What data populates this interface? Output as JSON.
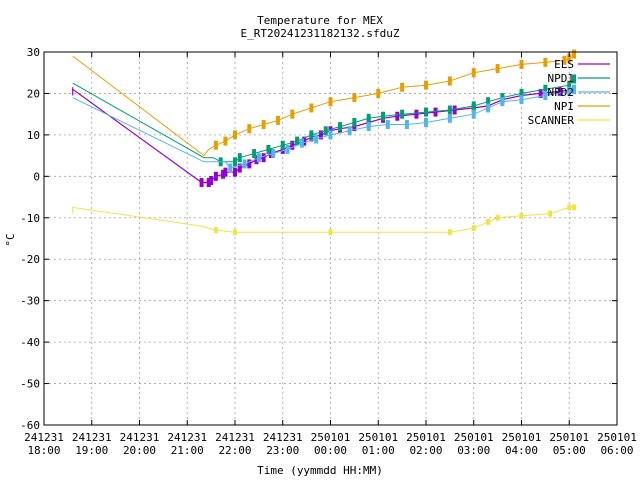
{
  "chart_data": {
    "type": "line",
    "title": "Temperature for MEX",
    "subtitle": "E_RT20241231182132.sfduZ",
    "xlabel": "Time (yymmdd HH:MM)",
    "ylabel": "°C",
    "ylim": [
      -60,
      30
    ],
    "yticks": [
      30,
      20,
      10,
      0,
      -10,
      -20,
      -30,
      -40,
      -50,
      -60
    ],
    "xlim_hours": [
      18,
      30
    ],
    "xticks": [
      {
        "hour": 18,
        "date": "241231",
        "time": "18:00"
      },
      {
        "hour": 19,
        "date": "241231",
        "time": "19:00"
      },
      {
        "hour": 20,
        "date": "241231",
        "time": "20:00"
      },
      {
        "hour": 21,
        "date": "241231",
        "time": "21:00"
      },
      {
        "hour": 22,
        "date": "241231",
        "time": "22:00"
      },
      {
        "hour": 23,
        "date": "241231",
        "time": "23:00"
      },
      {
        "hour": 24,
        "date": "250101",
        "time": "00:00"
      },
      {
        "hour": 25,
        "date": "250101",
        "time": "01:00"
      },
      {
        "hour": 26,
        "date": "250101",
        "time": "02:00"
      },
      {
        "hour": 27,
        "date": "250101",
        "time": "03:00"
      },
      {
        "hour": 28,
        "date": "250101",
        "time": "04:00"
      },
      {
        "hour": 29,
        "date": "250101",
        "time": "05:00"
      },
      {
        "hour": 30,
        "date": "250101",
        "time": "06:00"
      }
    ],
    "grid": true,
    "legend_position": "top-right",
    "series": [
      {
        "name": "ELS",
        "color": "#9400d3",
        "points": [
          [
            18.6,
            21.5
          ],
          [
            18.6,
            19.5
          ],
          [
            18.6,
            21
          ],
          [
            21.3,
            -1.5
          ],
          [
            21.45,
            -1.5
          ],
          [
            21.5,
            -1
          ],
          [
            21.6,
            0
          ],
          [
            21.75,
            0.5
          ],
          [
            21.8,
            1
          ],
          [
            22.0,
            1
          ],
          [
            22.1,
            2
          ],
          [
            22.3,
            3
          ],
          [
            22.45,
            4
          ],
          [
            22.6,
            4.5
          ],
          [
            22.75,
            5.5
          ],
          [
            23.0,
            6.5
          ],
          [
            23.2,
            7.5
          ],
          [
            23.45,
            8.5
          ],
          [
            23.6,
            9.5
          ],
          [
            23.8,
            10
          ],
          [
            24.0,
            11
          ],
          [
            24.2,
            11.5
          ],
          [
            24.5,
            12
          ],
          [
            24.8,
            13
          ],
          [
            25.1,
            14
          ],
          [
            25.4,
            14.5
          ],
          [
            25.8,
            15
          ],
          [
            26.2,
            15.5
          ],
          [
            26.6,
            16
          ],
          [
            27.0,
            16.5
          ],
          [
            27.3,
            17
          ],
          [
            27.6,
            18.5
          ],
          [
            28.0,
            19.5
          ],
          [
            28.4,
            20
          ],
          [
            28.8,
            20.5
          ],
          [
            29.1,
            21
          ]
        ]
      },
      {
        "name": "NPD1",
        "color": "#009e73",
        "points": [
          [
            18.6,
            22.5
          ],
          [
            21.35,
            4.5
          ],
          [
            21.55,
            4.5
          ],
          [
            21.7,
            3.5
          ],
          [
            22.0,
            3.5
          ],
          [
            22.1,
            4.5
          ],
          [
            22.4,
            5.5
          ],
          [
            22.7,
            6.5
          ],
          [
            23.0,
            7.5
          ],
          [
            23.3,
            8.5
          ],
          [
            23.6,
            10
          ],
          [
            23.9,
            11
          ],
          [
            24.2,
            12
          ],
          [
            24.5,
            13
          ],
          [
            24.8,
            14
          ],
          [
            25.1,
            14.5
          ],
          [
            25.5,
            15
          ],
          [
            26.0,
            15.5
          ],
          [
            26.5,
            16
          ],
          [
            27.0,
            17
          ],
          [
            27.3,
            18
          ],
          [
            27.6,
            19
          ],
          [
            28.0,
            20
          ],
          [
            28.5,
            21
          ],
          [
            29.0,
            22
          ],
          [
            29.1,
            23.5
          ]
        ]
      },
      {
        "name": "NPD2",
        "color": "#56b4e9",
        "points": [
          [
            18.6,
            19
          ],
          [
            21.35,
            3.5
          ],
          [
            21.8,
            3.5
          ],
          [
            21.9,
            2
          ],
          [
            22.2,
            3
          ],
          [
            22.5,
            4.5
          ],
          [
            22.8,
            5.5
          ],
          [
            23.1,
            6.5
          ],
          [
            23.4,
            8
          ],
          [
            23.7,
            9
          ],
          [
            24.0,
            10
          ],
          [
            24.4,
            11
          ],
          [
            24.8,
            12
          ],
          [
            25.2,
            12.5
          ],
          [
            25.6,
            12.5
          ],
          [
            26.0,
            13
          ],
          [
            26.5,
            14
          ],
          [
            27.0,
            15
          ],
          [
            27.3,
            16.5
          ],
          [
            27.6,
            18
          ],
          [
            28.0,
            18.5
          ],
          [
            28.5,
            19.5
          ],
          [
            29.0,
            20.5
          ],
          [
            29.1,
            21
          ]
        ]
      },
      {
        "name": "NPI",
        "color": "#e69f00",
        "points": [
          [
            18.6,
            29
          ],
          [
            21.35,
            5
          ],
          [
            21.45,
            6.5
          ],
          [
            21.6,
            7.5
          ],
          [
            21.8,
            8.5
          ],
          [
            22.0,
            10
          ],
          [
            22.3,
            11.5
          ],
          [
            22.6,
            12.5
          ],
          [
            22.9,
            13.5
          ],
          [
            23.2,
            15
          ],
          [
            23.6,
            16.5
          ],
          [
            24.0,
            18
          ],
          [
            24.5,
            19
          ],
          [
            25.0,
            20
          ],
          [
            25.5,
            21.5
          ],
          [
            26.0,
            22
          ],
          [
            26.5,
            23
          ],
          [
            27.0,
            25
          ],
          [
            27.5,
            26
          ],
          [
            28.0,
            27
          ],
          [
            28.5,
            27.5
          ],
          [
            28.9,
            28
          ],
          [
            29.0,
            28.5
          ],
          [
            29.1,
            29.5
          ]
        ]
      },
      {
        "name": "SCANNER",
        "color": "#f0e442",
        "points": [
          [
            18.6,
            -9
          ],
          [
            18.6,
            -7.5
          ],
          [
            21.3,
            -12
          ],
          [
            21.6,
            -13
          ],
          [
            22.0,
            -13.5
          ],
          [
            24.0,
            -13.5
          ],
          [
            26.5,
            -13.5
          ],
          [
            27.0,
            -12.5
          ],
          [
            27.3,
            -11
          ],
          [
            27.5,
            -10
          ],
          [
            28.0,
            -9.5
          ],
          [
            28.6,
            -9
          ],
          [
            29.0,
            -7.5
          ],
          [
            29.1,
            -7.5
          ]
        ]
      }
    ]
  }
}
